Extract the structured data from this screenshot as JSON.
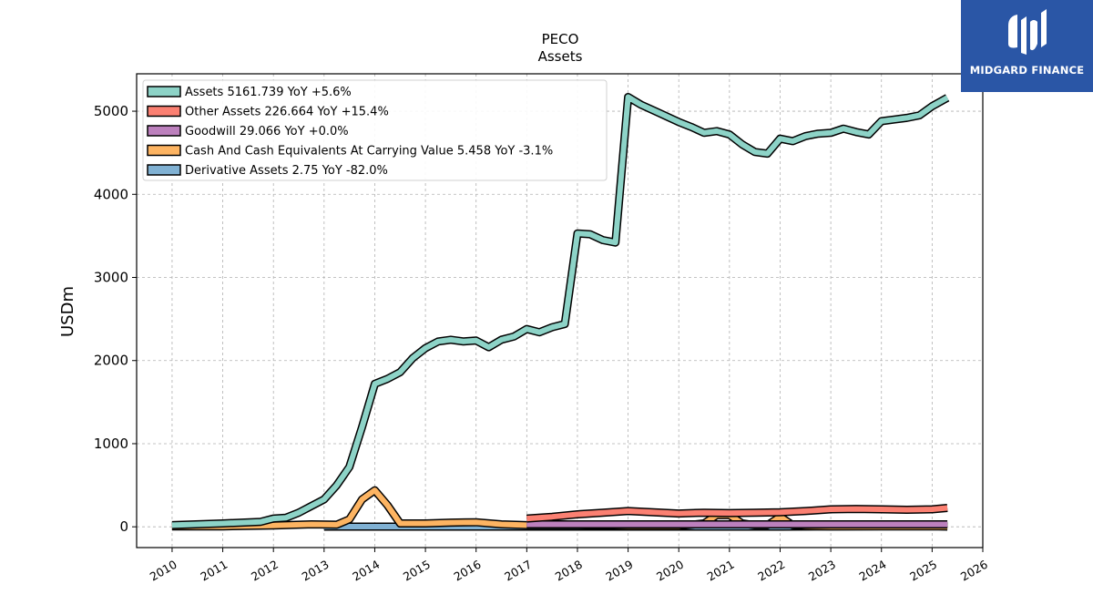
{
  "logo": {
    "text": "MIDGARD FINANCE",
    "icon": "midgard-logo-icon"
  },
  "chart_data": {
    "type": "line",
    "title": "PECO",
    "subtitle": "Assets",
    "ylabel": "USDm",
    "xlim": [
      2009.3,
      2026.0
    ],
    "ylim": [
      -250,
      5450
    ],
    "yticks": [
      0,
      1000,
      2000,
      3000,
      4000,
      5000
    ],
    "xticks": [
      2010,
      2011,
      2012,
      2013,
      2014,
      2015,
      2016,
      2017,
      2018,
      2019,
      2020,
      2021,
      2022,
      2023,
      2024,
      2025,
      2026
    ],
    "grid": true,
    "legend_position": "top-left",
    "series": [
      {
        "name": "Assets",
        "legend": "Assets  5161.739 YoY +5.6%",
        "color": "#8dd3c7",
        "x": [
          2010.0,
          2011.0,
          2011.75,
          2012.0,
          2012.25,
          2012.5,
          2012.75,
          2013.0,
          2013.25,
          2013.5,
          2013.75,
          2014.0,
          2014.25,
          2014.5,
          2014.75,
          2015.0,
          2015.25,
          2015.5,
          2015.75,
          2016.0,
          2016.25,
          2016.5,
          2016.75,
          2017.0,
          2017.25,
          2017.5,
          2017.75,
          2018.0,
          2018.25,
          2018.5,
          2018.75,
          2019.0,
          2019.25,
          2019.5,
          2019.75,
          2020.0,
          2020.25,
          2020.5,
          2020.75,
          2021.0,
          2021.25,
          2021.5,
          2021.75,
          2022.0,
          2022.25,
          2022.5,
          2022.75,
          2023.0,
          2023.25,
          2023.5,
          2023.75,
          2024.0,
          2024.25,
          2024.5,
          2024.75,
          2025.0,
          2025.3
        ],
        "values": [
          20,
          40,
          60,
          100,
          110,
          170,
          250,
          330,
          500,
          720,
          1200,
          1720,
          1780,
          1860,
          2030,
          2150,
          2230,
          2250,
          2230,
          2240,
          2160,
          2250,
          2290,
          2380,
          2340,
          2400,
          2440,
          3530,
          3520,
          3450,
          3420,
          5170,
          5080,
          5010,
          4940,
          4870,
          4810,
          4740,
          4760,
          4720,
          4600,
          4510,
          4490,
          4670,
          4640,
          4700,
          4730,
          4740,
          4790,
          4750,
          4720,
          4880,
          4900,
          4920,
          4950,
          5060,
          5162
        ]
      },
      {
        "name": "Other Assets",
        "legend": "Other Assets  226.664 YoY +15.4%",
        "color": "#fb8072",
        "x": [
          2017.0,
          2017.5,
          2018.0,
          2018.5,
          2019.0,
          2019.5,
          2020.0,
          2020.5,
          2021.0,
          2021.5,
          2022.0,
          2022.5,
          2023.0,
          2023.5,
          2024.0,
          2024.5,
          2025.0,
          2025.3
        ],
        "values": [
          100,
          120,
          150,
          170,
          190,
          175,
          160,
          170,
          165,
          170,
          175,
          190,
          210,
          215,
          210,
          205,
          210,
          227
        ]
      },
      {
        "name": "Goodwill",
        "legend": "Goodwill  29.066 YoY +0.0%",
        "color": "#bc80bd",
        "x": [
          2017.0,
          2018.0,
          2019.0,
          2020.0,
          2021.0,
          2022.0,
          2023.0,
          2024.0,
          2025.0,
          2025.3
        ],
        "values": [
          29,
          29,
          29,
          29,
          29,
          29,
          29,
          29,
          29,
          29
        ]
      },
      {
        "name": "Cash And Cash Equivalents At Carrying Value",
        "legend": "Cash And Cash Equivalents At Carrying Value  5.458 YoY -3.1%",
        "color": "#fdb462",
        "x": [
          2010.0,
          2011.0,
          2012.0,
          2012.75,
          2013.25,
          2013.5,
          2013.75,
          2014.0,
          2014.25,
          2014.5,
          2015.0,
          2015.5,
          2016.0,
          2016.5,
          2017.0,
          2018.0,
          2019.0,
          2020.0,
          2020.5,
          2020.75,
          2021.0,
          2021.25,
          2021.5,
          2021.75,
          2022.0,
          2022.25,
          2022.5,
          2023.0,
          2024.0,
          2025.0,
          2025.3
        ],
        "values": [
          5,
          5,
          15,
          30,
          25,
          90,
          330,
          440,
          260,
          40,
          40,
          50,
          55,
          30,
          20,
          20,
          10,
          10,
          40,
          140,
          140,
          40,
          20,
          20,
          120,
          20,
          10,
          5,
          5,
          5,
          5
        ]
      },
      {
        "name": "Derivative Assets",
        "legend": "Derivative Assets  2.75 YoY -82.0%",
        "color": "#80b1d3",
        "x": [
          2013.0,
          2014.0,
          2015.0,
          2016.0,
          2017.0,
          2018.0,
          2019.0,
          2020.0,
          2021.0,
          2022.0,
          2023.0,
          2024.0,
          2025.0,
          2025.3
        ],
        "values": [
          2,
          2,
          2,
          2,
          2,
          2,
          2,
          2,
          2,
          2,
          5,
          8,
          10,
          3
        ]
      }
    ]
  }
}
